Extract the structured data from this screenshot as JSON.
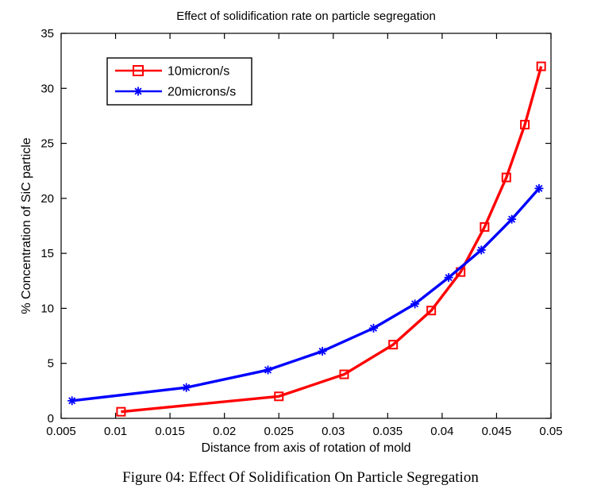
{
  "caption": "Figure 04: Effect Of Solidification On Particle Segregation",
  "chart_data": {
    "type": "line",
    "title": "Effect of solidification rate on particle segregation",
    "xlabel": "Distance from axis of rotation of mold",
    "ylabel": "% Concentration of SiC particle",
    "xlim": [
      0.005,
      0.05
    ],
    "ylim": [
      0,
      35
    ],
    "xticks": [
      "0.005",
      "0.01",
      "0.015",
      "0.02",
      "0.025",
      "0.03",
      "0.035",
      "0.04",
      "0.045",
      "0.05"
    ],
    "yticks": [
      "0",
      "5",
      "10",
      "15",
      "20",
      "25",
      "30",
      "35"
    ],
    "grid": false,
    "legend_position": "upper-left",
    "box": true,
    "axis_color": "#000000",
    "background_color": "#ffffff",
    "series": [
      {
        "name": "10micron/s",
        "color": "#ff0000",
        "marker": "square",
        "x": [
          0.0105,
          0.025,
          0.031,
          0.0355,
          0.039,
          0.0417,
          0.0439,
          0.0459,
          0.0476,
          0.0491
        ],
        "y": [
          0.6,
          2.0,
          4.0,
          6.7,
          9.8,
          13.3,
          17.4,
          21.9,
          26.7,
          32.0
        ]
      },
      {
        "name": "20microns/s",
        "color": "#0000ff",
        "marker": "asterisk",
        "x": [
          0.006,
          0.0165,
          0.024,
          0.029,
          0.0337,
          0.0375,
          0.0406,
          0.0436,
          0.0464,
          0.0489
        ],
        "y": [
          1.6,
          2.8,
          4.4,
          6.1,
          8.2,
          10.4,
          12.8,
          15.3,
          18.1,
          20.9
        ]
      }
    ]
  }
}
